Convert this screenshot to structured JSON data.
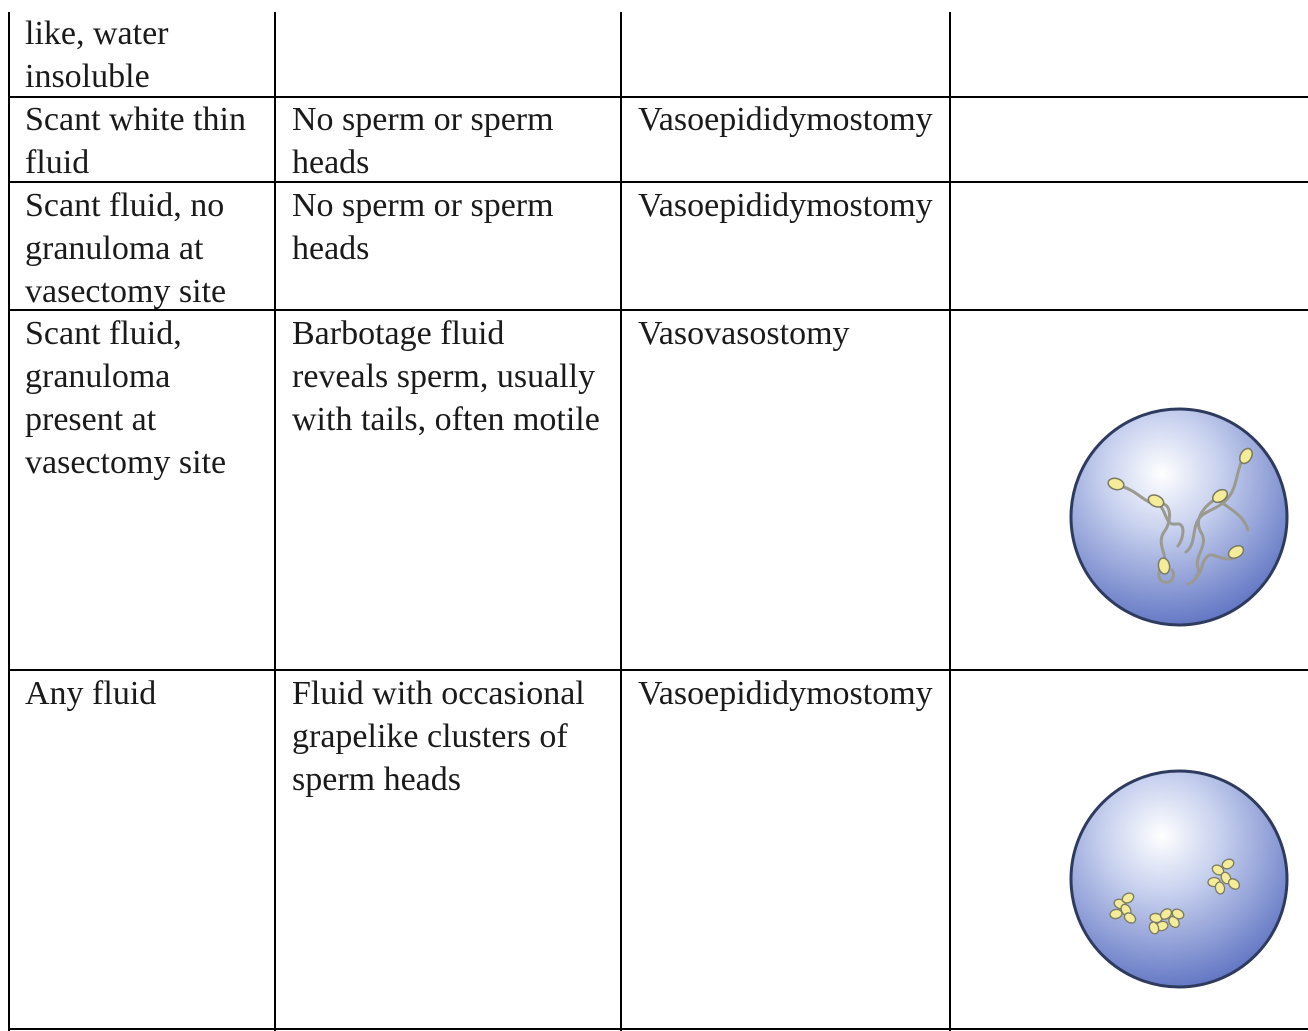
{
  "table": {
    "partial_row": {
      "col1": [
        "like, water",
        "insoluble"
      ]
    },
    "rows": [
      {
        "col1": [
          "Scant white thin",
          "fluid"
        ],
        "col2": [
          "No sperm or sperm",
          "heads"
        ],
        "col3": [
          "Vasoepididymostomy"
        ]
      },
      {
        "col1": [
          "Scant fluid, no",
          "granuloma at",
          "vasectomy site"
        ],
        "col2": [
          "No sperm or sperm",
          "heads"
        ],
        "col3": [
          "Vasoepididymostomy"
        ]
      },
      {
        "col1": [
          "Scant fluid,",
          "granuloma",
          "present at",
          "vasectomy site"
        ],
        "col2": [
          "Barbotage fluid",
          "reveals sperm, usually",
          "with tails, often motile"
        ],
        "col3": [
          "Vasovasostomy"
        ],
        "figure": "circle-sperm-with-tails-icon"
      },
      {
        "col1": [
          "Any fluid"
        ],
        "col2": [
          "Fluid with occasional",
          "grapelike clusters of",
          "sperm heads"
        ],
        "col3": [
          "Vasoepididymostomy"
        ],
        "figure": "circle-sperm-head-clusters-icon"
      }
    ]
  },
  "colors": {
    "rule": "#000000",
    "text": "#1a1a1a",
    "disc_light": "#ffffff",
    "disc_dark": "#5a6fc0",
    "disc_outline": "#2f3b5e",
    "sperm_head": "#f5ec9a",
    "sperm_tail": "#9a9a90"
  }
}
